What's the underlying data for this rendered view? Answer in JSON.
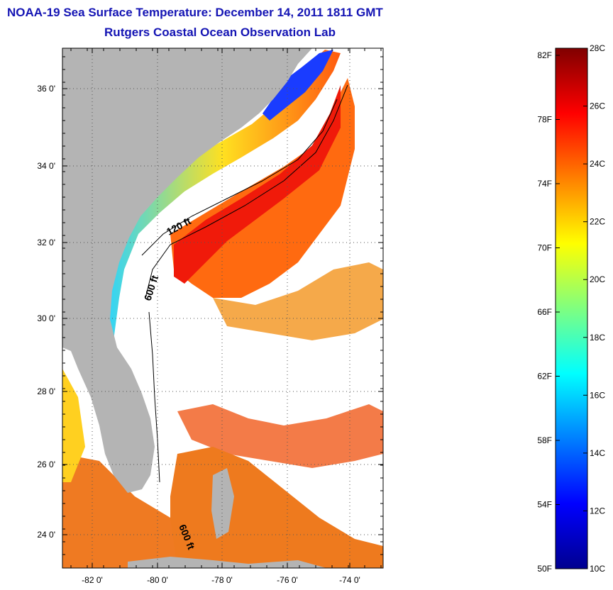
{
  "header": {
    "title": "NOAA-19 Sea Surface Temperature:  December 14, 2011 1811 GMT",
    "subtitle": "Rutgers Coastal Ocean Observation Lab"
  },
  "map": {
    "lat_labels": [
      "36 0'",
      "34 0'",
      "32 0'",
      "30 0'",
      "28 0'",
      "26 0'",
      "24 0'"
    ],
    "lon_labels": [
      "-82 0'",
      "-80 0'",
      "-78 0'",
      "-76 0'",
      "-74 0'"
    ],
    "contour_labels": [
      "120 ft",
      "600 ft",
      "600 ft"
    ],
    "colors": {
      "land": "#b4b4b4",
      "no_data": "#ffffff",
      "axis": "#000000"
    }
  },
  "colorbar": {
    "fahrenheit_labels": [
      "82F",
      "78F",
      "74F",
      "70F",
      "66F",
      "62F",
      "58F",
      "54F",
      "50F"
    ],
    "celsius_labels": [
      "28C",
      "26C",
      "24C",
      "22C",
      "20C",
      "18C",
      "16C",
      "14C",
      "12C",
      "10C"
    ],
    "colormap": "jet"
  }
}
